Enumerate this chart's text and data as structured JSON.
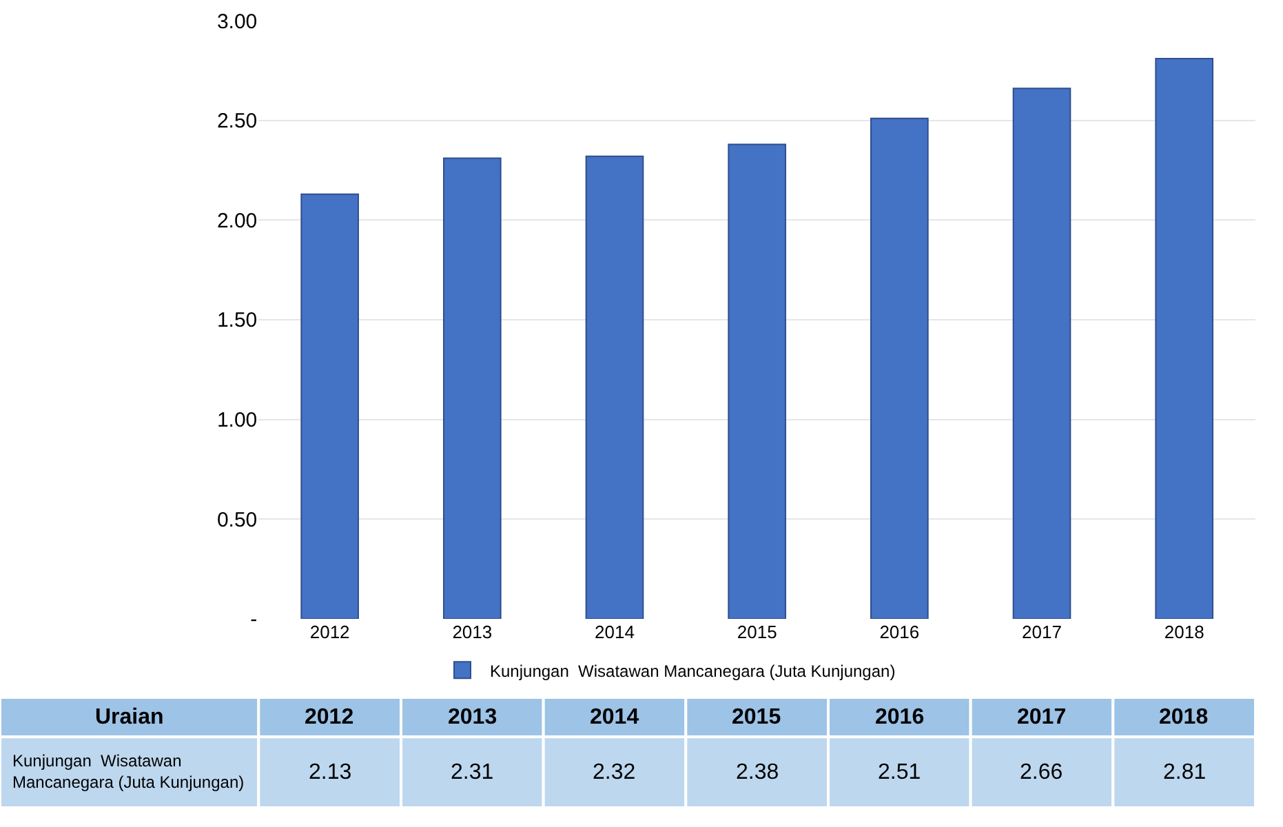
{
  "chart_data": {
    "type": "bar",
    "categories": [
      "2012",
      "2013",
      "2014",
      "2015",
      "2016",
      "2017",
      "2018"
    ],
    "series": [
      {
        "name": "Kunjungan  Wisatawan Mancanegara (Juta Kunjungan)",
        "color": "#4472c4",
        "values": [
          2.13,
          2.31,
          2.32,
          2.38,
          2.51,
          2.66,
          2.81
        ]
      }
    ],
    "ylim": [
      0,
      3.0
    ],
    "yticks": [
      {
        "value": 0,
        "label": "-"
      },
      {
        "value": 0.5,
        "label": "0.50"
      },
      {
        "value": 1.0,
        "label": "1.00"
      },
      {
        "value": 1.5,
        "label": "1.50"
      },
      {
        "value": 2.0,
        "label": "2.00"
      },
      {
        "value": 2.5,
        "label": "2.50"
      },
      {
        "value": 3.0,
        "label": "3.00"
      }
    ],
    "grid": "y",
    "legend": "bottom",
    "data_labels": true,
    "annotations": [
      "Uraian"
    ]
  }
}
